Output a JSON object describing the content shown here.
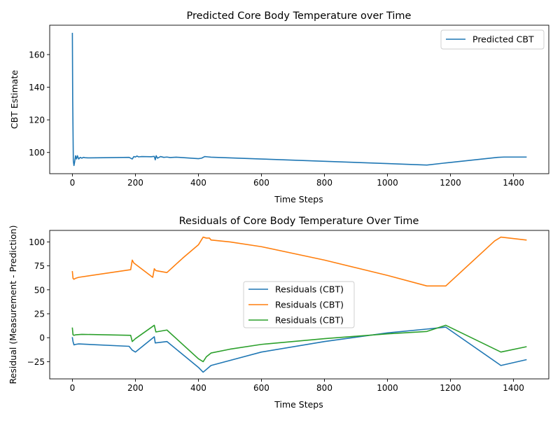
{
  "chart_data": [
    {
      "type": "line",
      "title": "Predicted Core Body Temperature over Time",
      "xlabel": "Time Steps",
      "ylabel": "CBT Estimate",
      "xlim": [
        -72,
        1512
      ],
      "ylim": [
        87,
        178
      ],
      "xticks": [
        0,
        200,
        400,
        600,
        800,
        1000,
        1200,
        1400
      ],
      "yticks": [
        100,
        120,
        140,
        160
      ],
      "grid": false,
      "legend_position": "upper right",
      "series": [
        {
          "name": "Predicted CBT",
          "color": "#1f77b4",
          "x": [
            0,
            1,
            3,
            5,
            7,
            10,
            13,
            16,
            20,
            25,
            30,
            35,
            40,
            50,
            100,
            180,
            190,
            195,
            200,
            205,
            210,
            220,
            250,
            260,
            263,
            266,
            270,
            280,
            290,
            300,
            310,
            330,
            400,
            410,
            420,
            430,
            440,
            600,
            800,
            1000,
            1125,
            1180,
            1200,
            1350,
            1370,
            1440
          ],
          "y": [
            173,
            132,
            95,
            92,
            94,
            98,
            96,
            98,
            96,
            97,
            96.5,
            97,
            96.8,
            96.7,
            96.8,
            97,
            96,
            97.5,
            97.2,
            97.8,
            97.3,
            97.5,
            97.4,
            97.6,
            95.5,
            98,
            96.5,
            97.5,
            97,
            97.2,
            96.9,
            97.1,
            96.2,
            96.5,
            97.5,
            97.3,
            97.1,
            96,
            94.6,
            93.2,
            92.3,
            93.5,
            93.9,
            97,
            97.2,
            97.2
          ]
        }
      ]
    },
    {
      "type": "line",
      "title": "Residuals of Core Body Temperature Over Time",
      "xlabel": "Time Steps",
      "ylabel": "Residual (Measurement - Prediction)",
      "xlim": [
        -72,
        1512
      ],
      "ylim": [
        -43,
        112
      ],
      "xticks": [
        0,
        200,
        400,
        600,
        800,
        1000,
        1200,
        1400
      ],
      "yticks": [
        -25,
        0,
        25,
        50,
        75,
        100
      ],
      "grid": false,
      "legend_position": "center",
      "series": [
        {
          "name": "Residuals (CBT)",
          "color": "#1f77b4",
          "x": [
            0,
            2,
            5,
            10,
            20,
            180,
            190,
            200,
            260,
            263,
            300,
            400,
            415,
            440,
            600,
            800,
            1000,
            1125,
            1185,
            1360,
            1440
          ],
          "y": [
            0,
            -4,
            -7.5,
            -7,
            -6.5,
            -9,
            -13,
            -15,
            1,
            -5.5,
            -4,
            -31,
            -36,
            -29,
            -15,
            -4,
            5,
            9,
            11,
            -29,
            -23
          ]
        },
        {
          "name": "Residuals (CBT)",
          "color": "#ff7f0e",
          "x": [
            0,
            2,
            5,
            10,
            20,
            185,
            190,
            195,
            255,
            260,
            265,
            300,
            350,
            400,
            415,
            425,
            435,
            440,
            500,
            600,
            800,
            1000,
            1125,
            1185,
            1340,
            1360,
            1440
          ],
          "y": [
            69,
            62,
            61,
            62,
            63,
            71,
            81,
            78,
            63,
            72,
            70,
            68,
            83,
            97,
            105,
            104,
            104,
            102,
            100,
            95,
            81,
            65,
            54,
            54,
            101,
            105,
            102
          ]
        },
        {
          "name": "Residuals (CBT)",
          "color": "#2ca02c",
          "x": [
            0,
            2,
            5,
            10,
            30,
            185,
            190,
            200,
            260,
            265,
            300,
            400,
            415,
            425,
            440,
            500,
            600,
            800,
            1000,
            1125,
            1185,
            1360,
            1440
          ],
          "y": [
            10,
            3,
            2.5,
            3,
            3.5,
            2.5,
            -4,
            -1,
            13,
            6,
            8,
            -22,
            -25,
            -20,
            -16,
            -12,
            -7,
            -1,
            4,
            6.5,
            13,
            -15,
            -9.5
          ]
        }
      ]
    }
  ]
}
